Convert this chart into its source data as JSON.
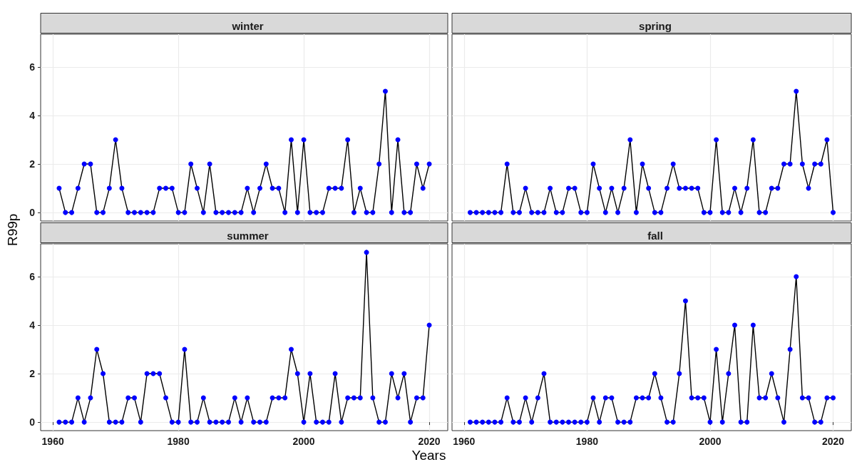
{
  "chart_data": [
    {
      "type": "line",
      "title": "winter",
      "ylabel": "R99p",
      "x": [
        1961,
        1962,
        1963,
        1964,
        1965,
        1966,
        1967,
        1968,
        1969,
        1970,
        1971,
        1972,
        1973,
        1974,
        1975,
        1976,
        1977,
        1978,
        1979,
        1980,
        1981,
        1982,
        1983,
        1984,
        1985,
        1986,
        1987,
        1988,
        1989,
        1990,
        1991,
        1992,
        1993,
        1994,
        1995,
        1996,
        1997,
        1998,
        1999,
        2000,
        2001,
        2002,
        2003,
        2004,
        2005,
        2006,
        2007,
        2008,
        2009,
        2010,
        2011,
        2012,
        2013,
        2014,
        2015,
        2016,
        2017,
        2018,
        2019,
        2020
      ],
      "series": [
        {
          "color": "#0000ff",
          "values": [
            1,
            0,
            0,
            1,
            2,
            2,
            0,
            0,
            1,
            3,
            1,
            0,
            0,
            0,
            0,
            0,
            1,
            1,
            1,
            0,
            0,
            2,
            1,
            0,
            2,
            0,
            0,
            0,
            0,
            0,
            1,
            0,
            1,
            2,
            1,
            1,
            0,
            3,
            0,
            3,
            0,
            0,
            0,
            1,
            1,
            1,
            3,
            0,
            1,
            0,
            0,
            2,
            5,
            0,
            3,
            0,
            0,
            2,
            1,
            2
          ]
        }
      ],
      "xlim": [
        1958.05,
        2022.95
      ],
      "ylim": [
        -0.35,
        7.35
      ],
      "xticks": [
        1960,
        1980,
        2000,
        2020
      ],
      "yticks": [
        0,
        2,
        4,
        6
      ],
      "grid": true,
      "marker": "circle",
      "line_style": "solid",
      "tick_labels": "y"
    },
    {
      "type": "line",
      "title": "spring",
      "x": [
        1961,
        1962,
        1963,
        1964,
        1965,
        1966,
        1967,
        1968,
        1969,
        1970,
        1971,
        1972,
        1973,
        1974,
        1975,
        1976,
        1977,
        1978,
        1979,
        1980,
        1981,
        1982,
        1983,
        1984,
        1985,
        1986,
        1987,
        1988,
        1989,
        1990,
        1991,
        1992,
        1993,
        1994,
        1995,
        1996,
        1997,
        1998,
        1999,
        2000,
        2001,
        2002,
        2003,
        2004,
        2005,
        2006,
        2007,
        2008,
        2009,
        2010,
        2011,
        2012,
        2013,
        2014,
        2015,
        2016,
        2017,
        2018,
        2019,
        2020
      ],
      "series": [
        {
          "color": "#0000ff",
          "values": [
            0,
            0,
            0,
            0,
            0,
            0,
            2,
            0,
            0,
            1,
            0,
            0,
            0,
            1,
            0,
            0,
            1,
            1,
            0,
            0,
            2,
            1,
            0,
            1,
            0,
            1,
            3,
            0,
            2,
            1,
            0,
            0,
            1,
            2,
            1,
            1,
            1,
            1,
            0,
            0,
            3,
            0,
            0,
            1,
            0,
            1,
            3,
            0,
            0,
            1,
            1,
            2,
            2,
            5,
            2,
            1,
            2,
            2,
            3,
            0
          ]
        }
      ],
      "xlim": [
        1958.05,
        2022.95
      ],
      "ylim": [
        -0.35,
        7.35
      ],
      "xticks": [
        1960,
        1980,
        2000,
        2020
      ],
      "yticks": [
        0,
        2,
        4,
        6
      ],
      "grid": true,
      "marker": "circle",
      "line_style": "solid",
      "tick_labels": false
    },
    {
      "type": "line",
      "title": "summer",
      "xlabel": "Years",
      "x": [
        1961,
        1962,
        1963,
        1964,
        1965,
        1966,
        1967,
        1968,
        1969,
        1970,
        1971,
        1972,
        1973,
        1974,
        1975,
        1976,
        1977,
        1978,
        1979,
        1980,
        1981,
        1982,
        1983,
        1984,
        1985,
        1986,
        1987,
        1988,
        1989,
        1990,
        1991,
        1992,
        1993,
        1994,
        1995,
        1996,
        1997,
        1998,
        1999,
        2000,
        2001,
        2002,
        2003,
        2004,
        2005,
        2006,
        2007,
        2008,
        2009,
        2010,
        2011,
        2012,
        2013,
        2014,
        2015,
        2016,
        2017,
        2018,
        2019,
        2020
      ],
      "series": [
        {
          "color": "#0000ff",
          "values": [
            0,
            0,
            0,
            1,
            0,
            1,
            3,
            2,
            0,
            0,
            0,
            1,
            1,
            0,
            2,
            2,
            2,
            1,
            0,
            0,
            3,
            0,
            0,
            1,
            0,
            0,
            0,
            0,
            1,
            0,
            1,
            0,
            0,
            0,
            1,
            1,
            1,
            3,
            2,
            0,
            2,
            0,
            0,
            0,
            2,
            0,
            1,
            1,
            1,
            7,
            1,
            0,
            0,
            2,
            1,
            2,
            0,
            1,
            1,
            4
          ]
        }
      ],
      "xlim": [
        1958.05,
        2022.95
      ],
      "ylim": [
        -0.35,
        7.35
      ],
      "xticks": [
        1960,
        1980,
        2000,
        2020
      ],
      "yticks": [
        0,
        2,
        4,
        6
      ],
      "grid": true,
      "marker": "circle",
      "line_style": "solid"
    },
    {
      "type": "line",
      "title": "fall",
      "x": [
        1961,
        1962,
        1963,
        1964,
        1965,
        1966,
        1967,
        1968,
        1969,
        1970,
        1971,
        1972,
        1973,
        1974,
        1975,
        1976,
        1977,
        1978,
        1979,
        1980,
        1981,
        1982,
        1983,
        1984,
        1985,
        1986,
        1987,
        1988,
        1989,
        1990,
        1991,
        1992,
        1993,
        1994,
        1995,
        1996,
        1997,
        1998,
        1999,
        2000,
        2001,
        2002,
        2003,
        2004,
        2005,
        2006,
        2007,
        2008,
        2009,
        2010,
        2011,
        2012,
        2013,
        2014,
        2015,
        2016,
        2017,
        2018,
        2019,
        2020
      ],
      "series": [
        {
          "color": "#0000ff",
          "values": [
            0,
            0,
            0,
            0,
            0,
            0,
            1,
            0,
            0,
            1,
            0,
            1,
            2,
            0,
            0,
            0,
            0,
            0,
            0,
            0,
            1,
            0,
            1,
            1,
            0,
            0,
            0,
            1,
            1,
            1,
            2,
            1,
            0,
            0,
            2,
            5,
            1,
            1,
            1,
            0,
            3,
            0,
            2,
            4,
            0,
            0,
            4,
            1,
            1,
            2,
            1,
            0,
            3,
            6,
            1,
            1,
            0,
            0,
            1,
            1
          ]
        }
      ],
      "xlim": [
        1958.05,
        2022.95
      ],
      "ylim": [
        -0.35,
        7.35
      ],
      "xticks": [
        1960,
        1980,
        2000,
        2020
      ],
      "yticks": [
        0,
        2,
        4,
        6
      ],
      "grid": true,
      "marker": "circle",
      "line_style": "solid",
      "tick_labels": "x"
    }
  ]
}
